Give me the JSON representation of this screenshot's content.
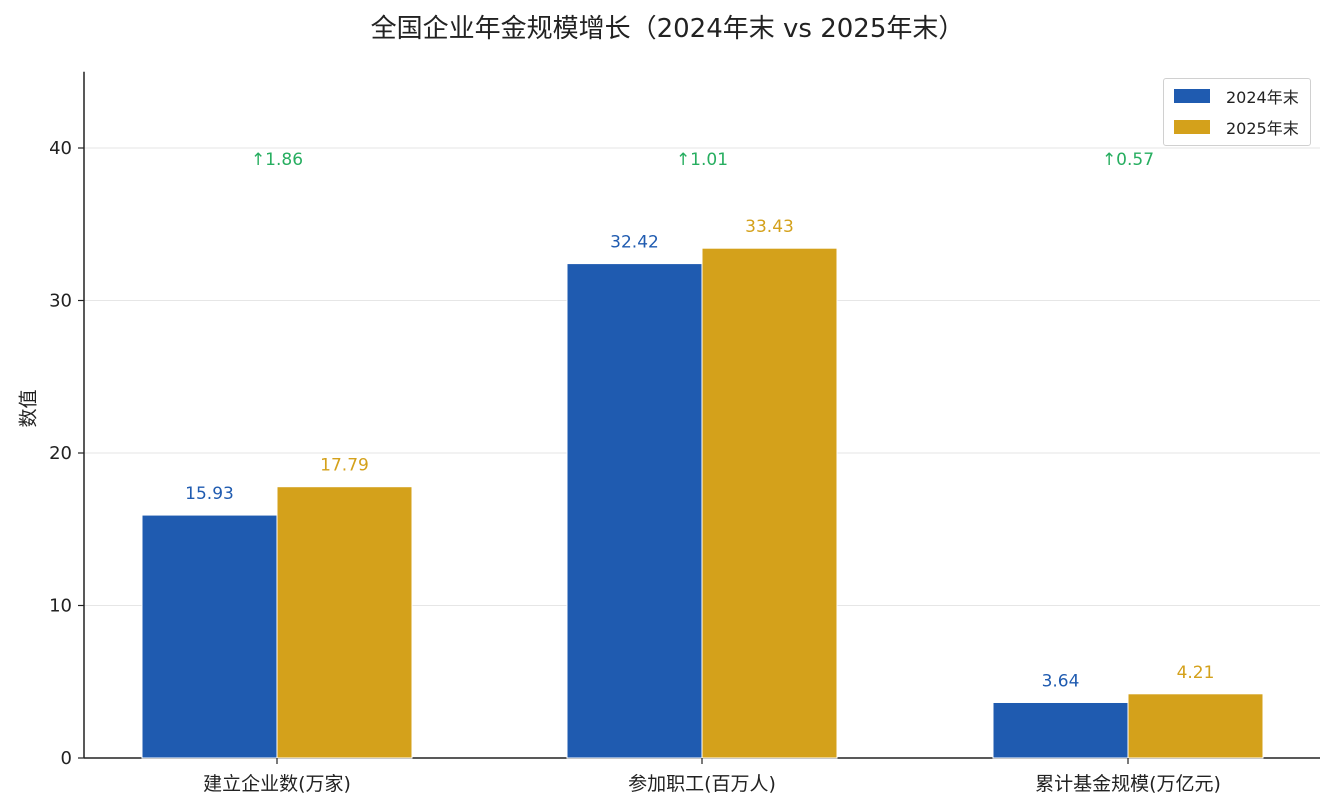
{
  "title": "全国企业年金规模增长（2024年末 vs 2025年末）",
  "chart_data": {
    "type": "bar",
    "title": "全国企业年金规模增长（2024年末 vs 2025年末）",
    "xlabel": "",
    "ylabel": "数值",
    "ylim": [
      0,
      45
    ],
    "yticks": [
      0,
      10,
      20,
      30,
      40
    ],
    "grid": "horizontal",
    "legend_position": "top-right",
    "categories": [
      "建立企业数(万家)",
      "参加职工(百万人)",
      "累计基金规模(万亿元)"
    ],
    "series": [
      {
        "name": "2024年末",
        "color": "#1f5bb0",
        "values": [
          15.93,
          32.42,
          3.64
        ]
      },
      {
        "name": "2025年末",
        "color": "#d4a11b",
        "values": [
          17.79,
          33.43,
          4.21
        ]
      }
    ],
    "increases": [
      "↑1.86",
      "↑1.01",
      "↑0.57"
    ],
    "increase_color": "#27ae60"
  }
}
